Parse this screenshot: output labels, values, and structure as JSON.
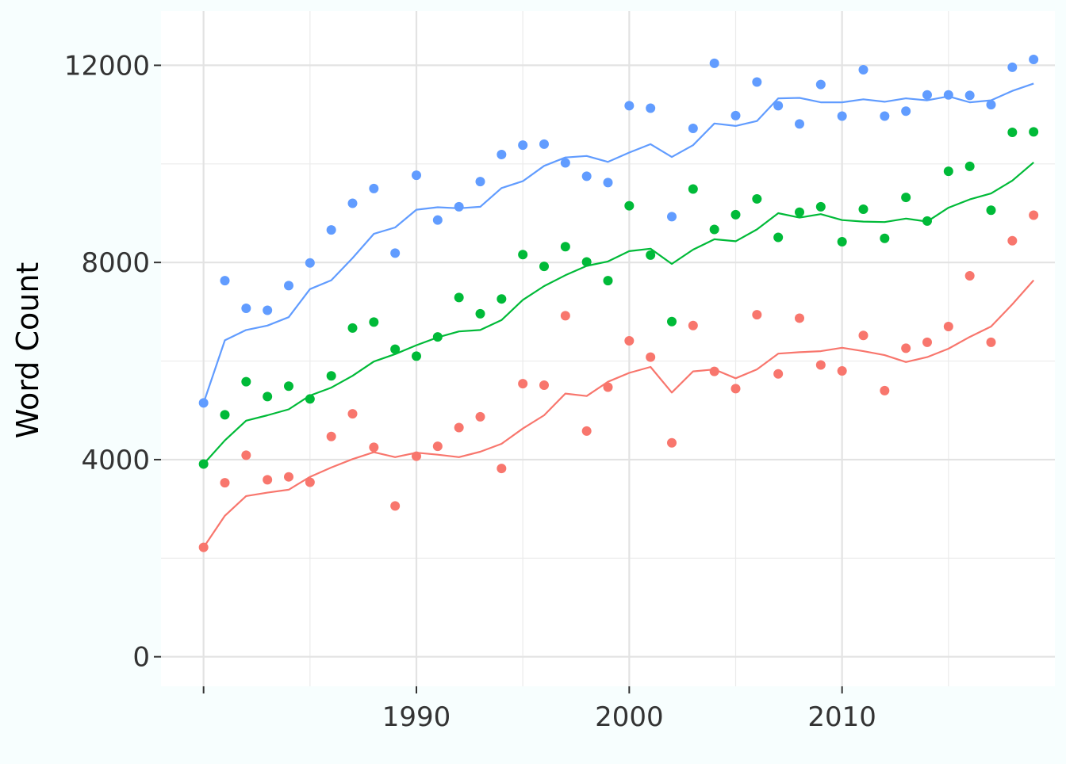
{
  "chart_data": {
    "type": "scatter",
    "title": "",
    "xlabel": "",
    "ylabel": "Word Count",
    "xlim": [
      1978,
      2020
    ],
    "ylim": [
      -600,
      13100
    ],
    "x_ticks": [
      1990,
      2000,
      2010
    ],
    "y_ticks": [
      0,
      4000,
      8000,
      12000
    ],
    "grid": true,
    "legend": "none",
    "x": [
      1980,
      1981,
      1982,
      1983,
      1984,
      1985,
      1986,
      1987,
      1988,
      1989,
      1990,
      1991,
      1992,
      1993,
      1994,
      1995,
      1996,
      1997,
      1998,
      1999,
      2000,
      2001,
      2002,
      2003,
      2004,
      2005,
      2006,
      2007,
      2008,
      2009,
      2010,
      2011,
      2012,
      2013,
      2014,
      2015,
      2016,
      2017,
      2018,
      2019
    ],
    "series": [
      {
        "color": "#619cff",
        "points": [
          5150,
          7630,
          7070,
          7030,
          7530,
          7990,
          8660,
          9200,
          9500,
          8190,
          9770,
          8860,
          9130,
          9640,
          10190,
          10380,
          10400,
          10020,
          9750,
          9620,
          11180,
          11130,
          8930,
          10720,
          12040,
          10980,
          11660,
          11180,
          10810,
          11610,
          10970,
          11910,
          10970,
          11070,
          11400,
          11400,
          11390,
          11200,
          11960,
          12120
        ],
        "trend": [
          5150,
          6420,
          6630,
          6720,
          6890,
          7460,
          7640,
          8090,
          8580,
          8710,
          9070,
          9120,
          9100,
          9130,
          9510,
          9650,
          9960,
          10130,
          10160,
          10040,
          10230,
          10400,
          10140,
          10380,
          10820,
          10770,
          10870,
          11330,
          11340,
          11250,
          11250,
          11310,
          11260,
          11330,
          11290,
          11370,
          11250,
          11290,
          11480,
          11630
        ]
      },
      {
        "color": "#00ba38",
        "points": [
          3910,
          4910,
          5580,
          5280,
          5490,
          5230,
          5700,
          6670,
          6790,
          6240,
          6100,
          6490,
          7290,
          6960,
          7260,
          8160,
          7920,
          8320,
          8010,
          7630,
          9150,
          8150,
          6800,
          9490,
          8670,
          8970,
          9290,
          8510,
          9020,
          9130,
          8420,
          9080,
          8490,
          9320,
          8840,
          9850,
          9950,
          9060,
          10640,
          10650
        ],
        "trend": [
          3910,
          4390,
          4790,
          4900,
          5020,
          5300,
          5460,
          5700,
          5990,
          6140,
          6320,
          6480,
          6600,
          6630,
          6830,
          7240,
          7520,
          7740,
          7930,
          8020,
          8230,
          8280,
          7970,
          8260,
          8470,
          8430,
          8670,
          9000,
          8910,
          8980,
          8860,
          8830,
          8820,
          8890,
          8830,
          9110,
          9280,
          9400,
          9660,
          10030
        ]
      },
      {
        "color": "#f8766d",
        "points": [
          2220,
          3530,
          4090,
          3590,
          3650,
          3540,
          4470,
          4930,
          4250,
          3060,
          4070,
          4270,
          4650,
          4870,
          3820,
          5540,
          5510,
          6920,
          4580,
          5470,
          6410,
          6080,
          4340,
          6720,
          5790,
          5440,
          6940,
          5740,
          6870,
          5920,
          5800,
          6520,
          5400,
          6260,
          6380,
          6700,
          7730,
          6380,
          8440,
          8960
        ],
        "trend": [
          2220,
          2860,
          3260,
          3330,
          3390,
          3650,
          3840,
          4010,
          4150,
          4050,
          4140,
          4100,
          4050,
          4160,
          4320,
          4630,
          4900,
          5340,
          5290,
          5580,
          5760,
          5880,
          5360,
          5790,
          5830,
          5650,
          5830,
          6150,
          6180,
          6200,
          6270,
          6200,
          6120,
          5980,
          6080,
          6250,
          6490,
          6700,
          7150,
          7640
        ]
      }
    ]
  }
}
